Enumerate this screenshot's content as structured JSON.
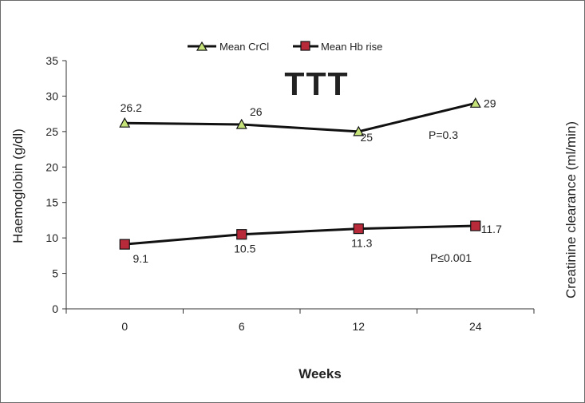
{
  "chart_data": {
    "type": "line",
    "x": [
      "0",
      "6",
      "12",
      "24"
    ],
    "xlabel": "Weeks",
    "ylabel": "Haemoglobin (g/dl)",
    "y2label": "Creatinine clearance (ml/min)",
    "ylim": [
      0,
      35
    ],
    "yticks": [
      0,
      5,
      10,
      15,
      20,
      25,
      30,
      35
    ],
    "legend_position": "top-center",
    "series": [
      {
        "name": "Mean CrCl",
        "values": [
          26.2,
          26,
          25,
          29
        ],
        "data_labels": [
          "26.2",
          "26",
          "25",
          "29"
        ],
        "marker": "triangle",
        "marker_color": "#c6e37a"
      },
      {
        "name": "Mean Hb rise",
        "values": [
          9.1,
          10.5,
          11.3,
          11.7
        ],
        "data_labels": [
          "9.1",
          "10.5",
          "11.3",
          "11.7"
        ],
        "marker": "square",
        "marker_color": "#b82a3a"
      }
    ],
    "annotations": [
      {
        "text": "P=0.3",
        "series": "Mean CrCl"
      },
      {
        "text": "P≤0.001",
        "series": "Mean Hb rise"
      }
    ],
    "symbol": "TTT"
  }
}
